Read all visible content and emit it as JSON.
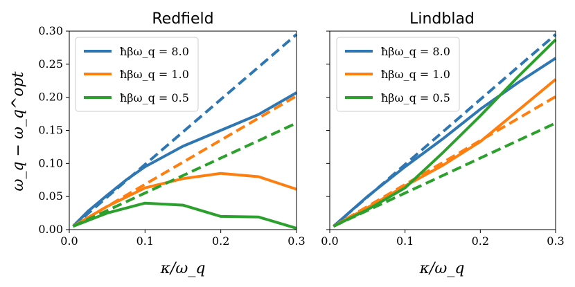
{
  "colors": {
    "blue": "#2f77b3",
    "orange": "#fe7f0f",
    "green": "#2ca02c"
  },
  "ylabel": "ω_q − ω_q^opt",
  "chart_data": [
    {
      "type": "line",
      "title": "Redfield",
      "xlabel": "κ/ω_q",
      "ylabel": "ω_q − ω_q^opt",
      "xlim": [
        0.0,
        0.3
      ],
      "ylim": [
        0.0,
        0.3
      ],
      "xticks": [
        "0.0",
        "0.1",
        "0.2",
        "0.3"
      ],
      "yticks": [
        "0.00",
        "0.05",
        "0.10",
        "0.15",
        "0.20",
        "0.25",
        "0.30"
      ],
      "legend": [
        "ħβω_q = 8.0",
        "ħβω_q = 1.0",
        "ħβω_q = 0.5"
      ],
      "legend_position": "top-left",
      "series": [
        {
          "name": "ħβω_q = 8.0",
          "style": "solid",
          "color": "blue",
          "x": [
            0.005,
            0.025,
            0.05,
            0.075,
            0.1,
            0.15,
            0.2,
            0.25,
            0.3
          ],
          "y": [
            0.005,
            0.028,
            0.052,
            0.075,
            0.095,
            0.126,
            0.15,
            0.174,
            0.207
          ]
        },
        {
          "name": "ħβω_q = 8.0 (dashed)",
          "style": "dashed",
          "color": "blue",
          "x": [
            0.005,
            0.3
          ],
          "y": [
            0.005,
            0.295
          ]
        },
        {
          "name": "ħβω_q = 1.0",
          "style": "solid",
          "color": "orange",
          "x": [
            0.005,
            0.05,
            0.1,
            0.15,
            0.2,
            0.25,
            0.3
          ],
          "y": [
            0.005,
            0.035,
            0.063,
            0.077,
            0.085,
            0.08,
            0.061
          ]
        },
        {
          "name": "ħβω_q = 1.0 (dashed)",
          "style": "dashed",
          "color": "orange",
          "x": [
            0.005,
            0.3
          ],
          "y": [
            0.005,
            0.202
          ]
        },
        {
          "name": "ħβω_q = 0.5",
          "style": "solid",
          "color": "green",
          "x": [
            0.005,
            0.05,
            0.1,
            0.15,
            0.2,
            0.25,
            0.3
          ],
          "y": [
            0.005,
            0.025,
            0.04,
            0.037,
            0.02,
            0.019,
            0.002
          ]
        },
        {
          "name": "ħβω_q = 0.5 (dashed)",
          "style": "dashed",
          "color": "green",
          "x": [
            0.005,
            0.3
          ],
          "y": [
            0.005,
            0.161
          ]
        }
      ]
    },
    {
      "type": "line",
      "title": "Lindblad",
      "xlabel": "κ/ω_q",
      "ylabel": "",
      "xlim": [
        0.0,
        0.3
      ],
      "ylim": [
        0.0,
        0.3
      ],
      "xticks": [
        "0.0",
        "0.1",
        "0.2",
        "0.3"
      ],
      "yticks": [],
      "legend": [
        "ħβω_q = 8.0",
        "ħβω_q = 1.0",
        "ħβω_q = 0.5"
      ],
      "legend_position": "top-left",
      "series": [
        {
          "name": "ħβω_q = 8.0",
          "style": "solid",
          "color": "blue",
          "x": [
            0.005,
            0.05,
            0.1,
            0.15,
            0.2,
            0.25,
            0.3
          ],
          "y": [
            0.005,
            0.05,
            0.095,
            0.137,
            0.182,
            0.222,
            0.259
          ]
        },
        {
          "name": "ħβω_q = 8.0 (dashed)",
          "style": "dashed",
          "color": "blue",
          "x": [
            0.005,
            0.3
          ],
          "y": [
            0.005,
            0.295
          ]
        },
        {
          "name": "ħβω_q = 1.0",
          "style": "solid",
          "color": "orange",
          "x": [
            0.005,
            0.05,
            0.1,
            0.15,
            0.2,
            0.25,
            0.3
          ],
          "y": [
            0.005,
            0.033,
            0.066,
            0.097,
            0.133,
            0.18,
            0.227
          ]
        },
        {
          "name": "ħβω_q = 1.0 (dashed)",
          "style": "dashed",
          "color": "orange",
          "x": [
            0.005,
            0.3
          ],
          "y": [
            0.005,
            0.201
          ]
        },
        {
          "name": "ħβω_q = 0.5",
          "style": "solid",
          "color": "green",
          "x": [
            0.005,
            0.05,
            0.1,
            0.15,
            0.2,
            0.25,
            0.3
          ],
          "y": [
            0.005,
            0.03,
            0.063,
            0.116,
            0.172,
            0.231,
            0.287
          ]
        },
        {
          "name": "ħβω_q = 0.5 (dashed)",
          "style": "dashed",
          "color": "green",
          "x": [
            0.005,
            0.3
          ],
          "y": [
            0.005,
            0.161
          ]
        }
      ]
    }
  ]
}
